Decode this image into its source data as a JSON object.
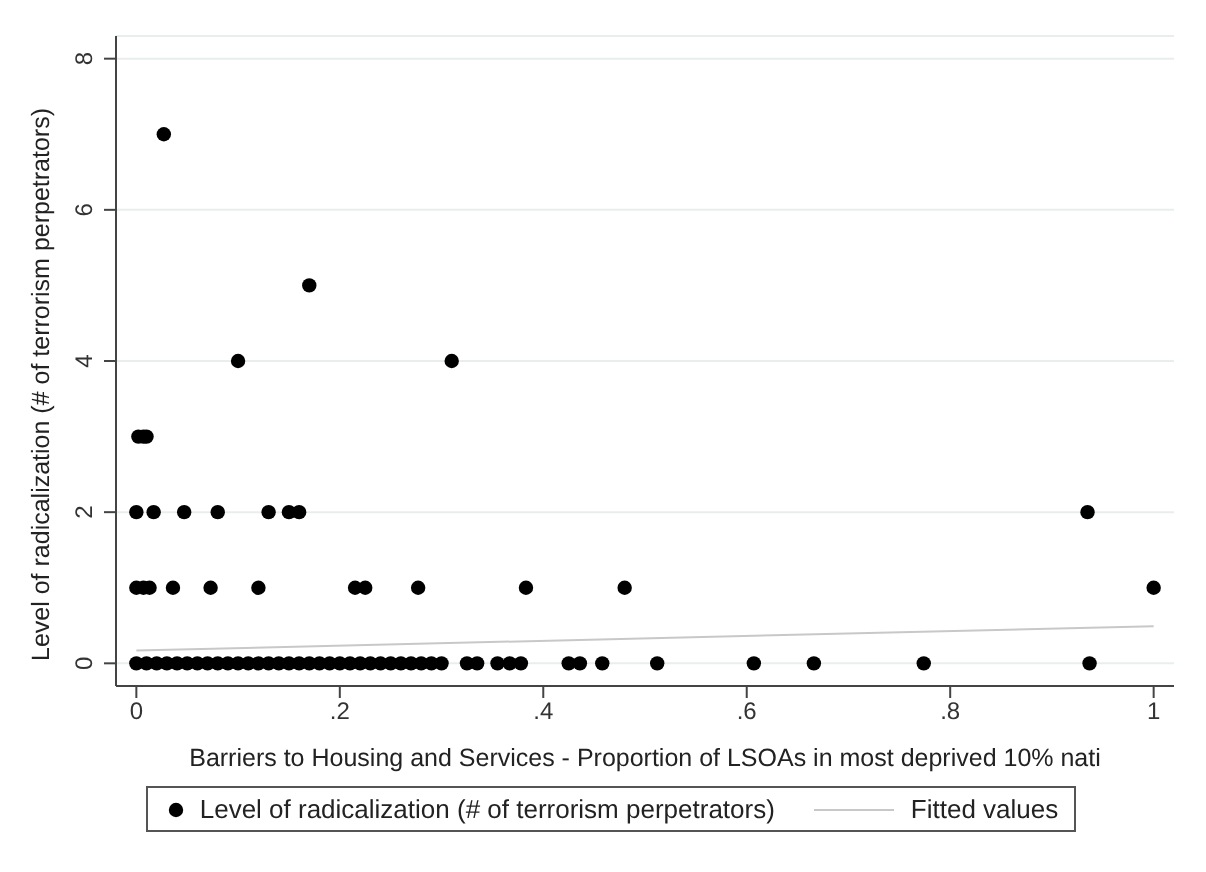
{
  "chart_data": {
    "type": "scatter",
    "xlabel": "Barriers to Housing and Services - Proportion of LSOAs in most deprived 10% nati",
    "ylabel": "Level of radicalization (# of terrorism perpetrators)",
    "series": [
      {
        "name": "Level of radicalization (# of terrorism perpetrators)",
        "color": "#000000",
        "marker": "circle",
        "x": [
          0.027,
          0.17,
          0.1,
          0.31,
          0.002,
          0.007,
          0.01,
          0,
          0.017,
          0.047,
          0.08,
          0.13,
          0.15,
          0.16,
          0.935,
          0,
          0.007,
          0.013,
          0.036,
          0.073,
          0.12,
          0.215,
          0.225,
          0.277,
          0.383,
          0.48,
          1.0,
          0,
          0.01,
          0.02,
          0.03,
          0.04,
          0.05,
          0.06,
          0.07,
          0.08,
          0.09,
          0.1,
          0.11,
          0.12,
          0.13,
          0.14,
          0.15,
          0.16,
          0.17,
          0.18,
          0.19,
          0.2,
          0.21,
          0.22,
          0.23,
          0.24,
          0.25,
          0.26,
          0.27,
          0.28,
          0.29,
          0.3,
          0.325,
          0.335,
          0.355,
          0.367,
          0.378,
          0.425,
          0.436,
          0.458,
          0.512,
          0.607,
          0.666,
          0.774,
          0.937
        ],
        "values": [
          7,
          5,
          4,
          4,
          3,
          3,
          3,
          2,
          2,
          2,
          2,
          2,
          2,
          2,
          2,
          1,
          1,
          1,
          1,
          1,
          1,
          1,
          1,
          1,
          1,
          1,
          1,
          0,
          0,
          0,
          0,
          0,
          0,
          0,
          0,
          0,
          0,
          0,
          0,
          0,
          0,
          0,
          0,
          0,
          0,
          0,
          0,
          0,
          0,
          0,
          0,
          0,
          0,
          0,
          0,
          0,
          0,
          0,
          0,
          0,
          0,
          0,
          0,
          0,
          0,
          0,
          0,
          0,
          0,
          0,
          0
        ]
      },
      {
        "name": "Fitted values",
        "type": "line",
        "color": "#c8c8c8",
        "marker": "none",
        "x": [
          0,
          1
        ],
        "values": [
          0.17,
          0.49
        ]
      }
    ],
    "xlim": [
      -0.02,
      1.02
    ],
    "xticks": [
      0,
      {
        "value": 0.2,
        "label": ".2"
      },
      {
        "value": 0.4,
        "label": ".4"
      },
      {
        "value": 0.6,
        "label": ".6"
      },
      {
        "value": 0.8,
        "label": ".8"
      },
      1
    ],
    "ylim": [
      -0.3,
      8.3
    ],
    "yticks": [
      0,
      2,
      4,
      6,
      8
    ],
    "grid": "y",
    "legend": "bottom"
  }
}
